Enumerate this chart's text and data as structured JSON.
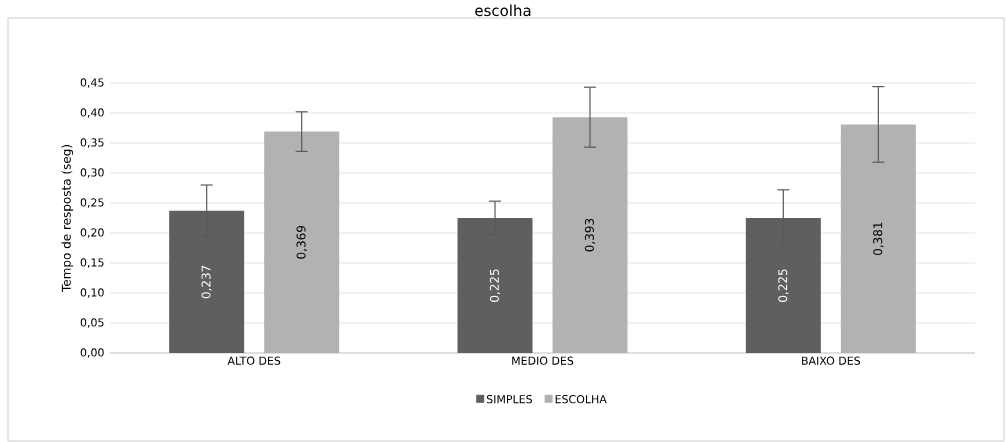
{
  "chart_data": {
    "type": "bar",
    "title": "escolha",
    "ylabel": "Tempo de resposta (seg)",
    "categories": [
      "ALTO DES",
      "MEDIO DES",
      "BAIXO DES"
    ],
    "series": [
      {
        "name": "SIMPLES",
        "color": "#5f5f5f",
        "values": [
          0.237,
          0.225,
          0.225
        ],
        "errors": [
          0.043,
          0.028,
          0.047
        ],
        "value_labels": [
          "0,237",
          "0,225",
          "0,225"
        ]
      },
      {
        "name": "ESCOLHA",
        "color": "#b2b2b2",
        "values": [
          0.369,
          0.393,
          0.381
        ],
        "errors": [
          0.033,
          0.05,
          0.063
        ],
        "value_labels": [
          "0,369",
          "0,393",
          "0,381"
        ]
      }
    ],
    "ylim": [
      0,
      0.45
    ],
    "yticks": [
      {
        "value": 0,
        "label": "0,00"
      },
      {
        "value": 0.05,
        "label": "0,05"
      },
      {
        "value": 0.1,
        "label": "0,10"
      },
      {
        "value": 0.15,
        "label": "0,15"
      },
      {
        "value": 0.2,
        "label": "0,20"
      },
      {
        "value": 0.25,
        "label": "0,25"
      },
      {
        "value": 0.3,
        "label": "0,30"
      },
      {
        "value": 0.35,
        "label": "0,35"
      },
      {
        "value": 0.4,
        "label": "0,40"
      },
      {
        "value": 0.45,
        "label": "0,45"
      }
    ],
    "grid": "y",
    "legend": "bottom"
  }
}
